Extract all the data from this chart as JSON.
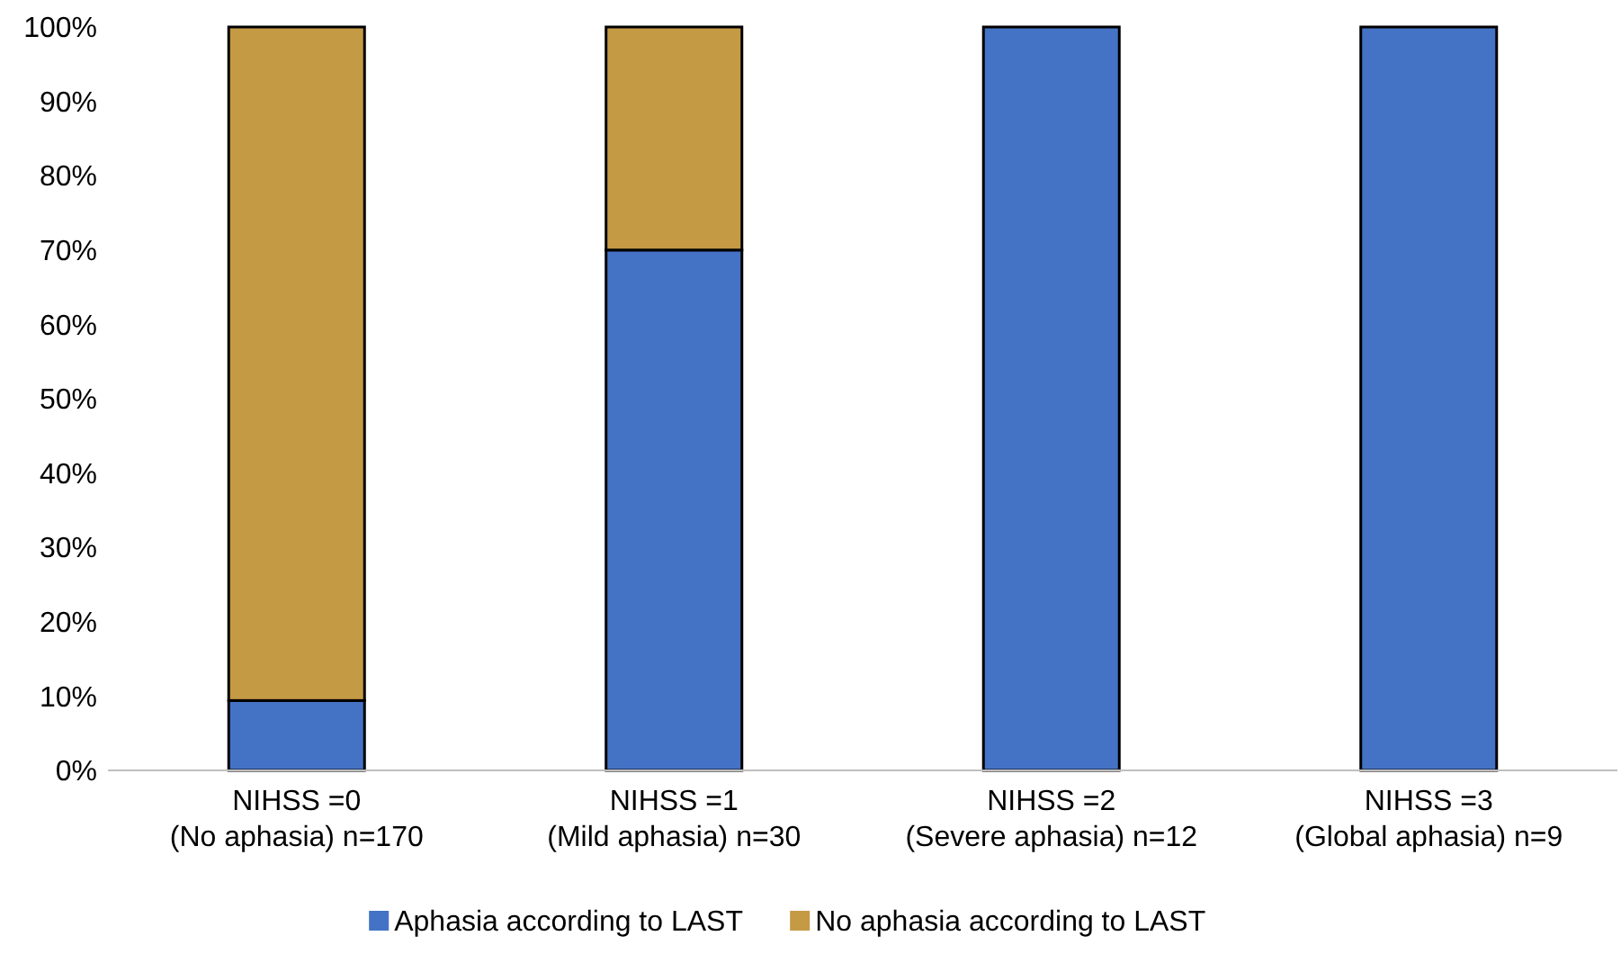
{
  "chart_data": {
    "type": "bar",
    "stacked": true,
    "categories": [
      "NIHSS =0\n(No aphasia) n=170",
      "NIHSS =1\n(Mild aphasia) n=30",
      "NIHSS =2\n(Severe aphasia) n=12",
      "NIHSS =3\n(Global aphasia) n=9"
    ],
    "series": [
      {
        "name": "Aphasia according to LAST",
        "color": "#4472c4",
        "values": [
          9.4,
          70,
          100,
          100
        ]
      },
      {
        "name": "No aphasia according to LAST",
        "color": "#c49a45",
        "values": [
          90.6,
          30,
          0,
          0
        ]
      }
    ],
    "ylim": [
      0,
      100
    ],
    "yticks": [
      {
        "value": 0,
        "label": "0%"
      },
      {
        "value": 10,
        "label": "10%"
      },
      {
        "value": 20,
        "label": "20%"
      },
      {
        "value": 30,
        "label": "30%"
      },
      {
        "value": 40,
        "label": "40%"
      },
      {
        "value": 50,
        "label": "50%"
      },
      {
        "value": 60,
        "label": "60%"
      },
      {
        "value": 70,
        "label": "70%"
      },
      {
        "value": 80,
        "label": "80%"
      },
      {
        "value": 90,
        "label": "90%"
      },
      {
        "value": 100,
        "label": "100%"
      }
    ],
    "grid": false,
    "legend": "bottom"
  }
}
